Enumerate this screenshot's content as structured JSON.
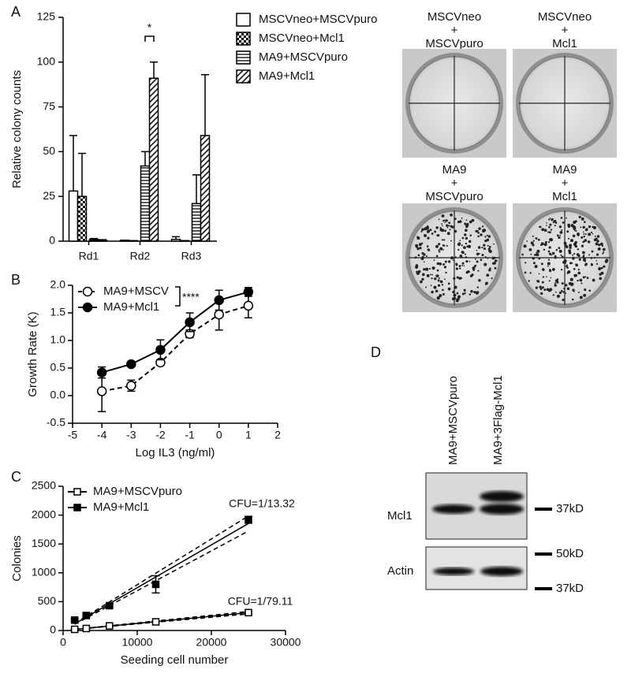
{
  "panel_labels": [
    "A",
    "B",
    "C",
    "D"
  ],
  "chart_data": [
    {
      "type": "bar",
      "ylabel": "Relative colony counts",
      "categories": [
        "Rd1",
        "Rd2",
        "Rd3"
      ],
      "series": [
        {
          "name": "MSCVneo+MSCVpuro",
          "color": "#000000",
          "pattern": "none",
          "values": [
            28,
            0.5,
            1
          ],
          "errors": [
            31,
            0,
            1.5
          ]
        },
        {
          "name": "MSCVneo+Mcl1",
          "color": "#000000",
          "pattern": "checker",
          "values": [
            25,
            0.3,
            0.3
          ],
          "errors": [
            24,
            0,
            0
          ]
        },
        {
          "name": "MA9+MSCVpuro",
          "color": "#000000",
          "pattern": "hlines",
          "values": [
            1,
            42,
            21
          ],
          "errors": [
            0.5,
            8,
            16
          ]
        },
        {
          "name": "MA9+Mcl1",
          "color": "#000000",
          "pattern": "dlines",
          "values": [
            0.5,
            91,
            59
          ],
          "errors": [
            0.3,
            9,
            34
          ]
        }
      ],
      "ylim": [
        0,
        125
      ],
      "yticks": [
        0,
        25,
        50,
        75,
        100,
        125
      ],
      "annotations": [
        "*"
      ]
    },
    {
      "type": "line",
      "xlabel": "Log IL3 (ng/ml)",
      "ylabel": "Growth Rate (K)",
      "x": [
        -4,
        -3,
        -2,
        -1,
        0,
        1
      ],
      "series": [
        {
          "name": "MA9+MSCV",
          "color": "#000000",
          "marker": "open-circle",
          "dashed": true,
          "values": [
            0.08,
            0.18,
            0.6,
            1.12,
            1.47,
            1.63
          ],
          "errors": [
            0.37,
            0.1,
            0.05,
            0.07,
            0.28,
            0.22
          ]
        },
        {
          "name": "MA9+Mcl1",
          "color": "#000000",
          "marker": "filled-circle",
          "dashed": false,
          "values": [
            0.42,
            0.57,
            0.83,
            1.33,
            1.73,
            1.88
          ],
          "errors": [
            0.1,
            0.02,
            0.18,
            0.17,
            0.18,
            0.08
          ]
        }
      ],
      "xlim": [
        -5,
        2
      ],
      "xticks": [
        -5,
        -4,
        -3,
        -2,
        -1,
        0,
        1,
        2
      ],
      "ylim": [
        -0.5,
        2
      ],
      "yticks": [
        -0.5,
        {
          "value": 0,
          "label": "0.0"
        },
        0.5,
        {
          "value": 1,
          "label": "1.0"
        },
        1.5,
        {
          "value": 2,
          "label": "2.0"
        }
      ],
      "annotations": [
        "****"
      ]
    },
    {
      "type": "scatter",
      "xlabel": "Seeding cell number",
      "ylabel": "Colonies",
      "x": [
        1562,
        3125,
        6250,
        12500,
        25000
      ],
      "series": [
        {
          "name": "MA9+MSCVpuro",
          "color": "#000000",
          "marker": "open-square",
          "fit": true,
          "values": [
            20,
            35,
            80,
            150,
            310
          ],
          "errors": [
            5,
            5,
            10,
            15,
            20
          ]
        },
        {
          "name": "MA9+Mcl1",
          "color": "#000000",
          "marker": "filled-square",
          "fit": true,
          "values": [
            180,
            260,
            430,
            800,
            1920
          ],
          "errors": [
            20,
            20,
            25,
            150,
            60
          ]
        }
      ],
      "xlim": [
        0,
        30000
      ],
      "xticks": [
        0,
        10000,
        20000,
        30000
      ],
      "ylim": [
        0,
        2500
      ],
      "yticks": [
        0,
        500,
        1000,
        1500,
        2000,
        2500
      ],
      "annotations": [
        "CFU=1/79.11",
        "CFU=1/13.32"
      ]
    }
  ],
  "plates": [
    {
      "label": [
        "MSCVneo",
        "+",
        "MSCVpuro"
      ]
    },
    {
      "label": [
        "MSCVneo",
        "+",
        "Mcl1"
      ]
    },
    {
      "label": [
        "MA9",
        "+",
        "MSCVpuro"
      ]
    },
    {
      "label": [
        "MA9",
        "+",
        "Mcl1"
      ]
    }
  ],
  "blot": {
    "lanes": [
      "MA9+MSCVpuro",
      "MA9+3Flag-Mcl1"
    ],
    "rows": [
      "Mcl1",
      "Actin"
    ],
    "markers": [
      "37kD",
      "50kD",
      "37kD"
    ]
  }
}
